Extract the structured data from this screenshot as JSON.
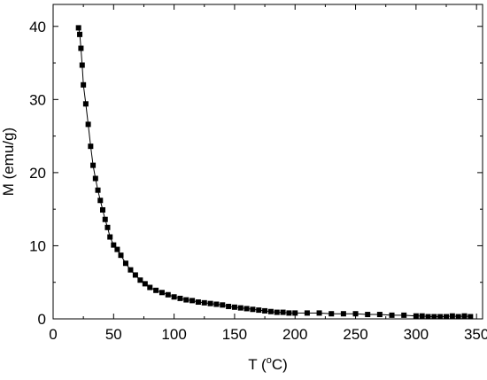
{
  "chart_data": {
    "type": "scatter",
    "title": "",
    "xlabel": "T (°C)",
    "xlabel_main": "T (",
    "xlabel_sup": "o",
    "xlabel_end": "C)",
    "ylabel": "M (emu/g)",
    "xlim": [
      0,
      355
    ],
    "ylim": [
      0,
      43
    ],
    "xticks": [
      0,
      50,
      100,
      150,
      200,
      250,
      300,
      350
    ],
    "yticks": [
      0,
      10,
      20,
      30,
      40
    ],
    "xtick_labels": [
      "0",
      "50",
      "100",
      "150",
      "200",
      "250",
      "300",
      "350"
    ],
    "ytick_labels": [
      "0",
      "10",
      "20",
      "30",
      "40"
    ],
    "grid": false,
    "legend": "none",
    "marker": "square",
    "line": "connected",
    "color": "#000000",
    "series": [
      {
        "x": [
          21,
          22,
          23,
          24,
          25,
          27,
          29,
          31,
          33,
          35,
          37,
          39,
          41,
          43,
          45,
          47,
          50,
          53,
          56,
          60,
          64,
          68,
          72,
          76,
          80,
          85,
          90,
          95,
          100,
          105,
          110,
          115,
          120,
          125,
          130,
          135,
          140,
          145,
          150,
          155,
          160,
          165,
          170,
          175,
          180,
          185,
          190,
          195,
          200,
          210,
          220,
          230,
          240,
          250,
          260,
          270,
          280,
          290,
          300,
          305,
          310,
          315,
          320,
          325,
          330,
          335,
          340,
          345
        ],
        "y": [
          39.8,
          38.9,
          37.0,
          34.7,
          32.0,
          29.4,
          26.6,
          23.6,
          21.0,
          19.2,
          17.6,
          16.2,
          14.9,
          13.6,
          12.5,
          11.2,
          10.1,
          9.5,
          8.7,
          7.6,
          6.7,
          6.0,
          5.3,
          4.8,
          4.3,
          3.9,
          3.6,
          3.3,
          3.0,
          2.8,
          2.6,
          2.5,
          2.3,
          2.2,
          2.1,
          2.0,
          1.9,
          1.7,
          1.6,
          1.5,
          1.4,
          1.3,
          1.2,
          1.1,
          1.0,
          0.9,
          0.9,
          0.8,
          0.8,
          0.8,
          0.8,
          0.7,
          0.7,
          0.7,
          0.6,
          0.6,
          0.5,
          0.5,
          0.4,
          0.4,
          0.3,
          0.3,
          0.3,
          0.3,
          0.4,
          0.3,
          0.4,
          0.3
        ]
      }
    ]
  }
}
